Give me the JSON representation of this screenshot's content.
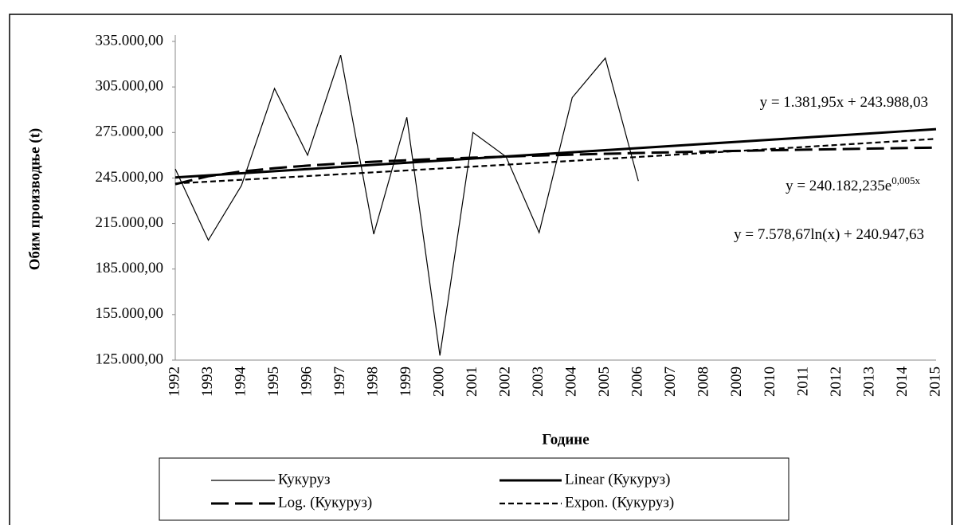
{
  "chart_data": {
    "type": "line",
    "x_label": "Године",
    "y_label": "Обим производње (t)",
    "categories": [
      "1992",
      "1993",
      "1994",
      "1995",
      "1996",
      "1997",
      "1998",
      "1999",
      "2000",
      "2001",
      "2002",
      "2003",
      "2004",
      "2005",
      "2006",
      "2007",
      "2008",
      "2009",
      "2010",
      "2011",
      "2012",
      "2013",
      "2014",
      "2015"
    ],
    "series": [
      {
        "name": "Кукуруз",
        "color": "#000000",
        "style": "thin",
        "values": [
          251000,
          204000,
          240000,
          304000,
          260000,
          326000,
          208000,
          285000,
          128000,
          275000,
          259000,
          209000,
          298000,
          324000,
          243000,
          null,
          null,
          null,
          null,
          null,
          null,
          null,
          null,
          null
        ]
      },
      {
        "name": "Linear (Кукуруз)",
        "color": "#000000",
        "style": "thick",
        "values": [
          245370,
          246752,
          248134,
          249516,
          250898,
          252280,
          253662,
          255044,
          256426,
          257808,
          259190,
          260571,
          261953,
          263335,
          264717,
          266099,
          267481,
          268863,
          270245,
          271627,
          273009,
          274391,
          275773,
          277155
        ]
      },
      {
        "name": "Log. (Кукуруз)",
        "color": "#000000",
        "style": "longdash",
        "values": [
          240948,
          246201,
          249274,
          251454,
          253145,
          254528,
          255695,
          256707,
          257600,
          258399,
          259121,
          259780,
          260387,
          260949,
          261472,
          261961,
          262420,
          262853,
          263263,
          263652,
          264021,
          264374,
          264711,
          265034
        ]
      },
      {
        "name": "Expon. (Кукуруз)",
        "color": "#000000",
        "style": "shortdash",
        "values": [
          241386,
          242596,
          243813,
          245035,
          246263,
          247498,
          248738,
          249985,
          251238,
          252498,
          253764,
          255036,
          256314,
          257599,
          258890,
          260188,
          261492,
          262803,
          264121,
          265445,
          266775,
          268112,
          269456,
          270807
        ]
      }
    ],
    "ylim": [
      125000,
      335000
    ],
    "yticks": [
      {
        "value": 125000,
        "label": "125.000,00"
      },
      {
        "value": 155000,
        "label": "155.000,00"
      },
      {
        "value": 185000,
        "label": "185.000,00"
      },
      {
        "value": 215000,
        "label": "215.000,00"
      },
      {
        "value": 245000,
        "label": "245.000,00"
      },
      {
        "value": 275000,
        "label": "275.000,00"
      },
      {
        "value": 305000,
        "label": "305.000,00"
      },
      {
        "value": 335000,
        "label": "335.000,00"
      }
    ],
    "annotations": [
      {
        "text": "y = 1.381,95x + 243.988,03"
      },
      {
        "text": "y = 240.182,235e",
        "sup": "0,005x"
      },
      {
        "text": "y = 7.578,67ln(x) + 240.947,63"
      }
    ],
    "legend": "bottom"
  }
}
